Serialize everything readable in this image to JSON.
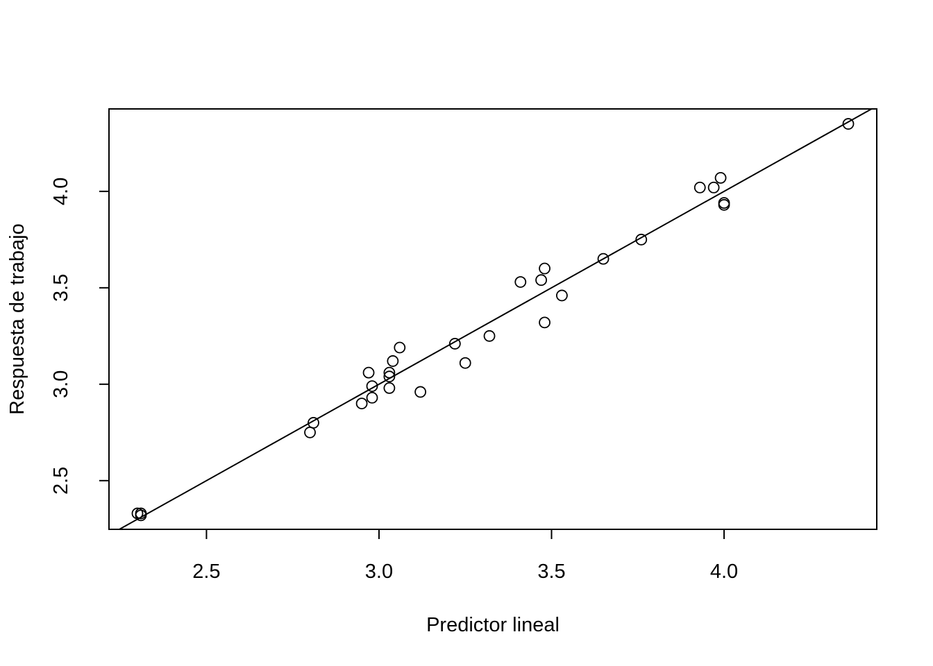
{
  "chart_data": {
    "type": "scatter",
    "title": "",
    "xlabel": "Predictor lineal",
    "ylabel": "Respuesta de trabajo",
    "xlim": [
      2.2175,
      4.4425
    ],
    "ylim": [
      2.2475,
      4.4275
    ],
    "xticks": [
      2.5,
      3.0,
      3.5,
      4.0
    ],
    "xtick_labels": [
      "2.5",
      "3.0",
      "3.5",
      "4.0"
    ],
    "yticks": [
      2.5,
      3.0,
      3.5,
      4.0
    ],
    "ytick_labels": [
      "2.5",
      "3.0",
      "3.5",
      "4.0"
    ],
    "grid": false,
    "marker": "open-circle",
    "reference_line": {
      "intercept": 0,
      "slope": 1
    },
    "points": [
      {
        "x": 2.3,
        "y": 2.33
      },
      {
        "x": 2.31,
        "y": 2.32
      },
      {
        "x": 2.31,
        "y": 2.33
      },
      {
        "x": 2.8,
        "y": 2.75
      },
      {
        "x": 2.81,
        "y": 2.8
      },
      {
        "x": 2.95,
        "y": 2.9
      },
      {
        "x": 2.98,
        "y": 2.93
      },
      {
        "x": 2.98,
        "y": 2.99
      },
      {
        "x": 2.97,
        "y": 3.06
      },
      {
        "x": 3.03,
        "y": 2.98
      },
      {
        "x": 3.03,
        "y": 3.04
      },
      {
        "x": 3.03,
        "y": 3.06
      },
      {
        "x": 3.04,
        "y": 3.12
      },
      {
        "x": 3.06,
        "y": 3.19
      },
      {
        "x": 3.12,
        "y": 2.96
      },
      {
        "x": 3.22,
        "y": 3.21
      },
      {
        "x": 3.25,
        "y": 3.11
      },
      {
        "x": 3.32,
        "y": 3.25
      },
      {
        "x": 3.41,
        "y": 3.53
      },
      {
        "x": 3.47,
        "y": 3.54
      },
      {
        "x": 3.48,
        "y": 3.6
      },
      {
        "x": 3.48,
        "y": 3.32
      },
      {
        "x": 3.53,
        "y": 3.46
      },
      {
        "x": 3.65,
        "y": 3.65
      },
      {
        "x": 3.76,
        "y": 3.75
      },
      {
        "x": 3.93,
        "y": 4.02
      },
      {
        "x": 3.97,
        "y": 4.02
      },
      {
        "x": 3.99,
        "y": 4.07
      },
      {
        "x": 4.0,
        "y": 3.94
      },
      {
        "x": 4.0,
        "y": 3.93
      },
      {
        "x": 4.36,
        "y": 4.35
      }
    ]
  }
}
